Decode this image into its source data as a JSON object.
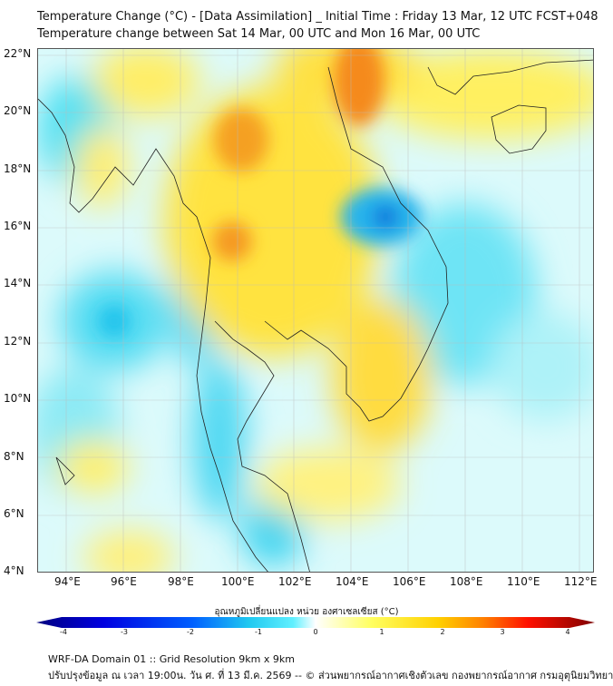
{
  "header": {
    "title": "Temperature Change (°C) - [Data Assimilation] _ Initial Time : Friday 13 Mar, 12 UTC FCST+048",
    "subtitle": "Temperature change between Sat 14 Mar, 00 UTC and Mon 16 Mar, 00 UTC"
  },
  "map": {
    "lon_ticks": [
      "94°E",
      "96°E",
      "98°E",
      "100°E",
      "102°E",
      "104°E",
      "106°E",
      "108°E",
      "110°E",
      "112°E"
    ],
    "lat_ticks": [
      "22°N",
      "20°N",
      "18°N",
      "16°N",
      "14°N",
      "12°N",
      "10°N",
      "8°N",
      "6°N",
      "4°N"
    ],
    "lon_range": [
      93,
      112.5
    ],
    "lat_range": [
      4,
      22.2
    ]
  },
  "colorbar": {
    "label": "อุณหภูมิเปลี่ยนแปลง หน่วย องศาเซลเซียส (°C)",
    "ticks": [
      "-4",
      "-3",
      "-2",
      "-1",
      "0",
      "1",
      "2",
      "3",
      "4"
    ],
    "colors": [
      "#00007f",
      "#0000e0",
      "#0060ff",
      "#20c8f0",
      "#60f0ff",
      "#ffffff",
      "#ffff60",
      "#ffd000",
      "#ff8000",
      "#ff1000",
      "#7f0000"
    ]
  },
  "footer": {
    "line1": "WRF-DA Domain 01 :: Grid Resolution 9km x 9km",
    "line2": "ปรับปรุงข้อมูล ณ เวลา 19:00น. วัน ศ. ที่ 13 มี.ค. 2569 -- © ส่วนพยากรณ์อากาศเชิงตัวเลข กองพยากรณ์อากาศ กรมอุตุนิยมวิทยา"
  }
}
